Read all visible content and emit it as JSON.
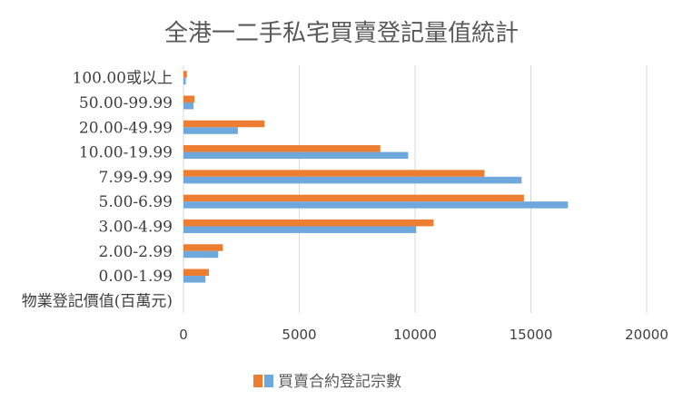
{
  "chart_data": {
    "type": "bar",
    "orientation": "horizontal",
    "title": "全港一二手私宅買賣登記量值統計",
    "categories": [
      "100.00或以上",
      "50.00-99.99",
      "20.00-49.99",
      "10.00-19.99",
      "7.99-9.99",
      "5.00-6.99",
      "3.00-4.99",
      "2.00-2.99",
      "0.00-1.99",
      "物業登記價值(百萬元)"
    ],
    "series": [
      {
        "name": "",
        "color": "#ed7d31",
        "values": [
          150,
          480,
          3500,
          8500,
          13000,
          14700,
          10800,
          1700,
          1100,
          0
        ]
      },
      {
        "name": "買賣合約登記宗數",
        "color": "#6fa8dc",
        "values": [
          100,
          430,
          2350,
          9700,
          14600,
          16600,
          10050,
          1500,
          950,
          0
        ]
      }
    ],
    "xlim": [
      0,
      20000
    ],
    "xticks": [
      "0",
      "5000",
      "10000",
      "15000",
      "20000"
    ],
    "grid": true,
    "legend_position": "bottom"
  }
}
